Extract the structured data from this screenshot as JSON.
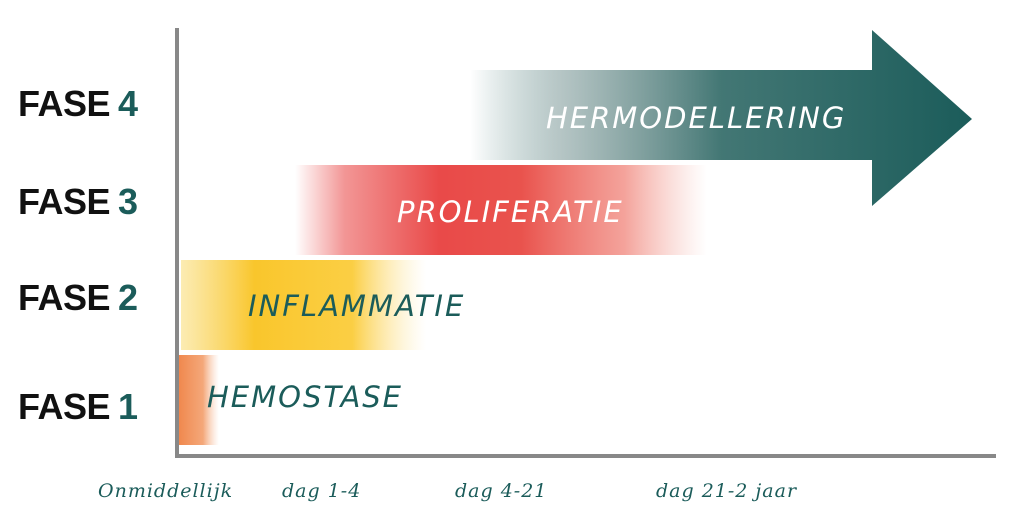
{
  "phases": [
    {
      "word": "FASE",
      "number": "1",
      "name": "HEMOSTASE"
    },
    {
      "word": "FASE",
      "number": "2",
      "name": "INFLAMMATIE"
    },
    {
      "word": "FASE",
      "number": "3",
      "name": "PROLIFERATIE"
    },
    {
      "word": "FASE",
      "number": "4",
      "name": "HERMODELLERING"
    }
  ],
  "timeline": [
    "Onmiddellijk",
    "dag 1-4",
    "dag 4-21",
    "dag 21-2 jaar"
  ],
  "colors": {
    "phase1": "#f0884e",
    "phase2": "#f9c62c",
    "phase3": "#e8403f",
    "phase4": "#1b5c5a",
    "number": "#1b5c5a",
    "axis": "#888888",
    "dark_text": "#1b5c5a",
    "light_text": "#ffffff"
  }
}
